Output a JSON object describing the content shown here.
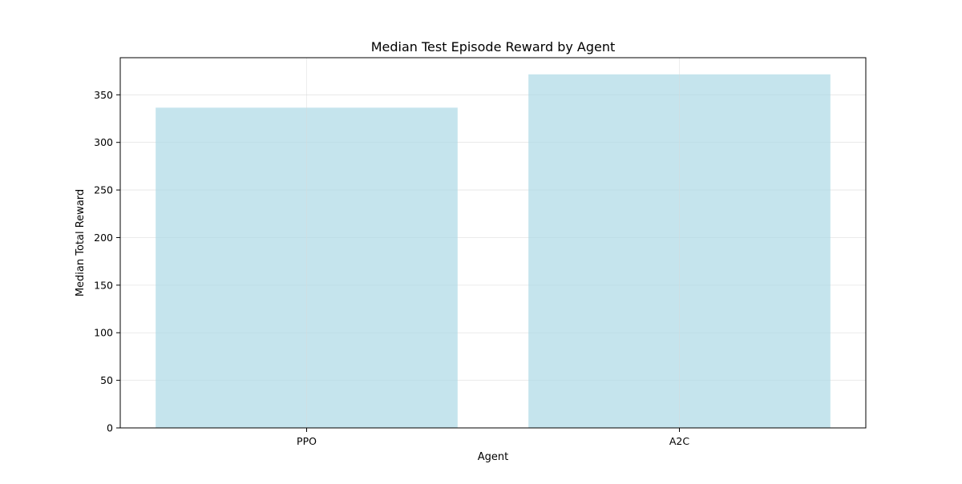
{
  "chart_data": {
    "type": "bar",
    "title": "Median Test Episode Reward by Agent",
    "xlabel": "Agent",
    "ylabel": "Median Total Reward",
    "categories": [
      "PPO",
      "A2C"
    ],
    "values": [
      336.5,
      371.5
    ],
    "ylim": [
      0,
      389
    ],
    "yticks": [
      0,
      50,
      100,
      150,
      200,
      250,
      300,
      350
    ],
    "grid": true,
    "colors": {
      "bar": "#add8e6",
      "grid": "#d9d9d9",
      "axis": "#000000"
    }
  }
}
